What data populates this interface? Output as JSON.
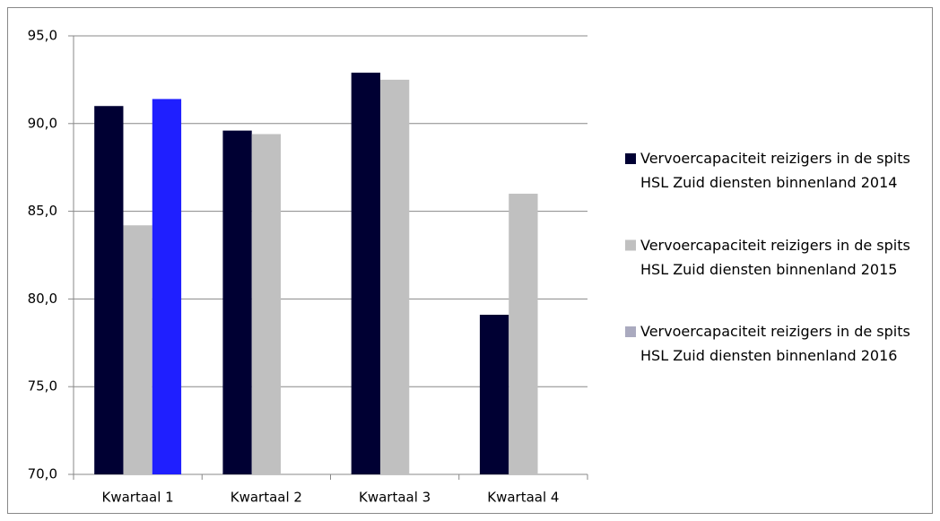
{
  "chart_data": {
    "type": "bar",
    "categories": [
      "Kwartaal 1",
      "Kwartaal 2",
      "Kwartaal 3",
      "Kwartaal 4"
    ],
    "series": [
      {
        "name": "Vervoercapaciteit reizigers in de spits HSL Zuid diensten binnenland 2014",
        "color": "#000033",
        "values": [
          91.0,
          89.6,
          92.9,
          79.1
        ]
      },
      {
        "name": "Vervoercapaciteit reizigers in de spits HSL Zuid diensten binnenland 2015",
        "color": "#c0c0c0",
        "values": [
          84.2,
          89.4,
          92.5,
          86.0
        ]
      },
      {
        "name": "Vervoercapaciteit reizigers in de spits HSL Zuid diensten binnenland 2016",
        "color": "#aaaabf",
        "point_colors": [
          "#1f1fff",
          null,
          null,
          null
        ],
        "values": [
          91.4,
          null,
          null,
          null
        ]
      }
    ],
    "ylim": [
      70,
      95
    ],
    "yticks": [
      {
        "value": 70,
        "label": "70,0"
      },
      {
        "value": 75,
        "label": "75,0"
      },
      {
        "value": 80,
        "label": "80,0"
      },
      {
        "value": 85,
        "label": "85,0"
      },
      {
        "value": 90,
        "label": "90,0"
      },
      {
        "value": 95,
        "label": "95,0"
      }
    ],
    "grid": true,
    "legend": "right"
  }
}
